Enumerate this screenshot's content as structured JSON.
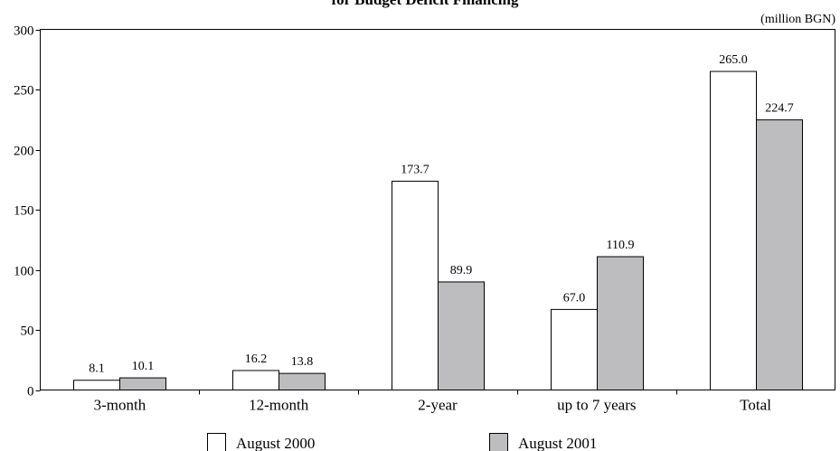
{
  "chart_data": {
    "type": "bar",
    "title": "for Budget Deficit Financing",
    "unit_label": "(million BGN)",
    "categories": [
      "3-month",
      "12-month",
      "2-year",
      "up to 7 years",
      "Total"
    ],
    "series": [
      {
        "name": "August 2000",
        "values": [
          8.1,
          16.2,
          173.7,
          67.0,
          265.0
        ],
        "labels": [
          "8.1",
          "16.2",
          "173.7",
          "67.0",
          "265.0"
        ],
        "color": "#ffffff"
      },
      {
        "name": "August 2001",
        "values": [
          10.1,
          13.8,
          89.9,
          110.9,
          224.7
        ],
        "labels": [
          "10.1",
          "13.8",
          "89.9",
          "110.9",
          "224.7"
        ],
        "color": "#bdbdbf"
      }
    ],
    "ylim": [
      0,
      300
    ],
    "yticks": [
      0,
      50,
      100,
      150,
      200,
      250,
      300
    ],
    "grid": false,
    "legend": "bottom"
  }
}
